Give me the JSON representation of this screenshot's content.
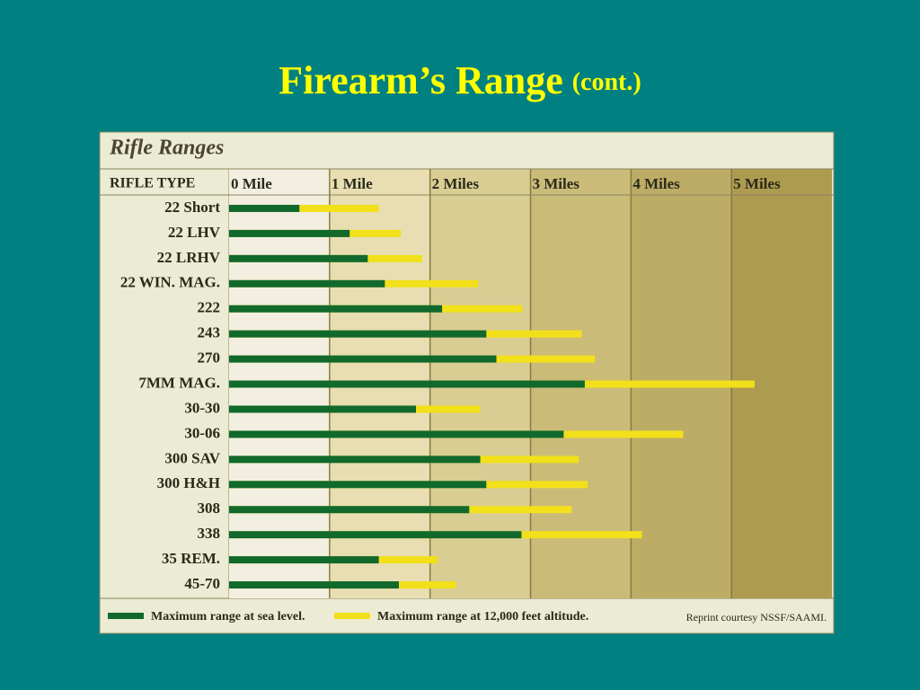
{
  "slide_title": "Firearm’s Range",
  "slide_subtitle": "(cont.)",
  "chart_data": {
    "type": "bar",
    "title": "Rifle Ranges",
    "category_header": "RIFLE TYPE",
    "note": "Reprint courtesy NSSF/SAAMI.",
    "categories": [
      "22 Short",
      "22 LHV",
      "22 LRHV",
      "22 WIN. MAG.",
      "222",
      "243",
      "270",
      "7MM MAG.",
      "30-30",
      "30-06",
      "300 SAV",
      "300 H&H",
      "308",
      "338",
      "35 REM.",
      "45-70"
    ],
    "series": [
      {
        "name": "Maximum range at sea level.",
        "color": "#11692c",
        "values": [
          0.7,
          1.2,
          1.38,
          1.55,
          2.12,
          2.56,
          2.66,
          3.54,
          1.86,
          3.33,
          2.5,
          2.56,
          2.39,
          2.91,
          1.49,
          1.69
        ]
      },
      {
        "name": "Maximum range at 12,000 feet altitude.",
        "color": "#f2e01a",
        "values": [
          1.49,
          1.71,
          1.92,
          2.48,
          2.92,
          3.51,
          3.64,
          5.23,
          2.5,
          4.52,
          3.48,
          3.57,
          3.41,
          4.11,
          2.08,
          2.26
        ]
      }
    ],
    "xlim": [
      0,
      6
    ],
    "xticks": [
      {
        "value": 0,
        "label": "0 Mile"
      },
      {
        "value": 1,
        "label": "1 Mile"
      },
      {
        "value": 2,
        "label": "2 Miles"
      },
      {
        "value": 3,
        "label": "3 Miles"
      },
      {
        "value": 4,
        "label": "4 Miles"
      },
      {
        "value": 5,
        "label": "5 Miles"
      }
    ],
    "grid": true
  }
}
